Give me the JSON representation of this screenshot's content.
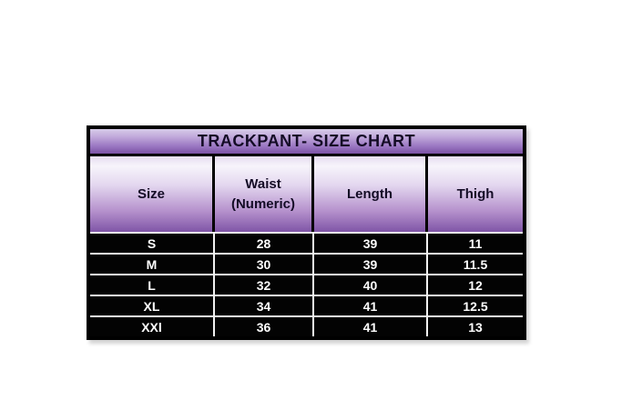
{
  "page": {
    "background": "#ffffff"
  },
  "size_chart": {
    "title": "TRACKPANT- SIZE CHART",
    "columns": [
      "Size",
      "Waist\n(Numeric)",
      "Length",
      "Thigh"
    ],
    "rows": [
      [
        "S",
        "28",
        "39",
        "11"
      ],
      [
        "M",
        "30",
        "39",
        "11.5"
      ],
      [
        "L",
        "32",
        "40",
        "12"
      ],
      [
        "XL",
        "34",
        "41",
        "12.5"
      ],
      [
        "XXl",
        "36",
        "41",
        "13"
      ]
    ],
    "colors": {
      "accent_purple_light": "#d6cbe8",
      "accent_purple_dark": "#7b52a4",
      "header_text": "#140c26",
      "data_background": "#030303",
      "data_text": "#ffffff",
      "grid_line": "#f2f2f2",
      "border": "#000000"
    }
  },
  "chart_data": {
    "type": "table",
    "title": "TRACKPANT- SIZE CHART",
    "columns": [
      "Size",
      "Waist (Numeric)",
      "Length",
      "Thigh"
    ],
    "rows": [
      [
        "S",
        28,
        39,
        11
      ],
      [
        "M",
        30,
        39,
        11.5
      ],
      [
        "L",
        32,
        40,
        12
      ],
      [
        "XL",
        34,
        41,
        12.5
      ],
      [
        "XXl",
        36,
        41,
        13
      ]
    ],
    "layout": {
      "header_style": "purple-gradient",
      "body_style": "black-with-white-gridlines"
    }
  }
}
